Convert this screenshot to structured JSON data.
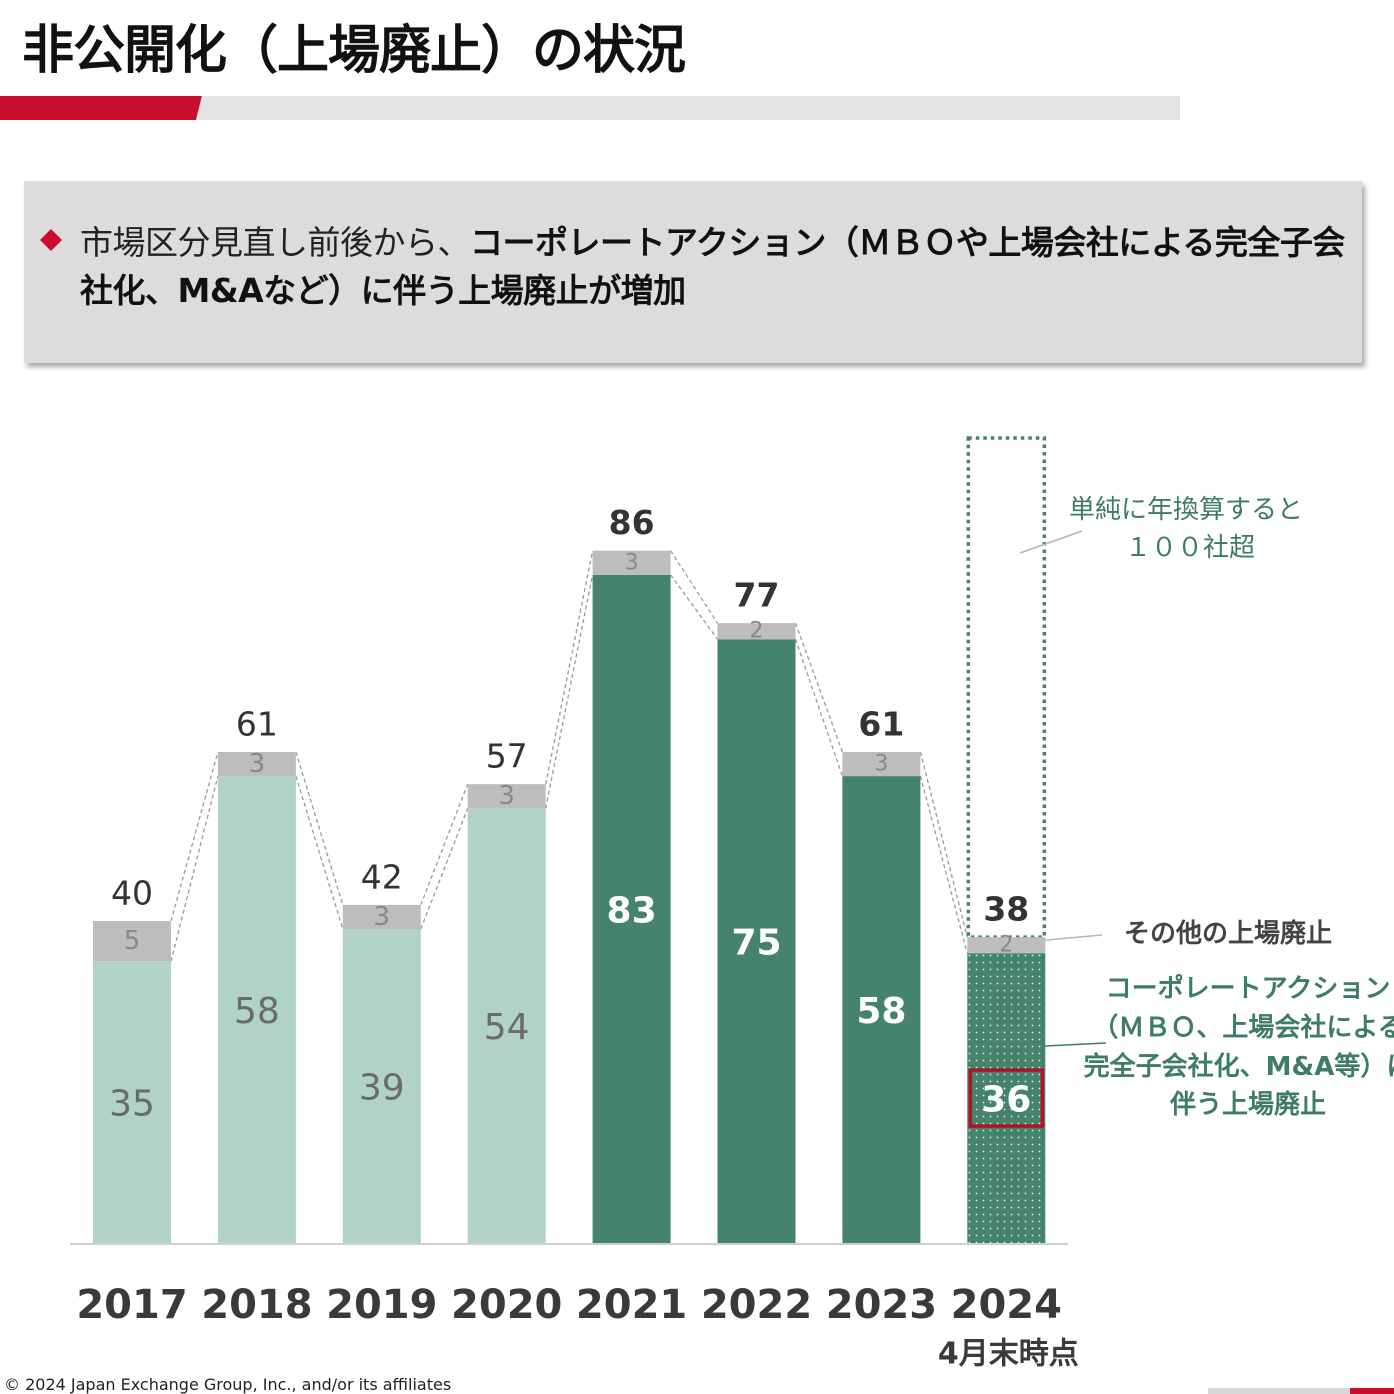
{
  "page": {
    "title": "非公開化（上場廃止）の状況",
    "footer": "© 2024 Japan Exchange Group, Inc., and/or its affiliates"
  },
  "summary": {
    "bullet_icon": "diamond-icon",
    "lead": "市場区分見直し前後から、",
    "emphasis": "コーポレートアクション（ＭＢＯや上場会社による完全子会社化、M&Aなど）に伴う上場廃止が増加"
  },
  "colors": {
    "accent_red": "#c8102e",
    "light_green": "#b0d3c6",
    "dark_green": "#46836c",
    "gray_segment": "#bdbdbd",
    "callout_text": "#3e7c64"
  },
  "chart_data": {
    "type": "bar",
    "stacked": true,
    "categories": [
      "2017",
      "2018",
      "2019",
      "2020",
      "2021",
      "2022",
      "2023",
      "2024"
    ],
    "category_sublabels": [
      "",
      "",
      "",
      "",
      "",
      "",
      "",
      "4月末時点"
    ],
    "series": [
      {
        "name": "コーポレートアクション（ＭＢＯ、上場会社による完全子会社化、M&A等）に伴う上場廃止",
        "values": [
          35,
          58,
          39,
          54,
          83,
          75,
          58,
          36
        ]
      },
      {
        "name": "その他の上場廃止",
        "values": [
          5,
          3,
          3,
          3,
          3,
          2,
          3,
          2
        ]
      }
    ],
    "totals": [
      40,
      61,
      42,
      57,
      86,
      77,
      61,
      38
    ],
    "annotation": "単純に年換算すると\n１００社超",
    "annualized_estimate_min": 100,
    "ylim": [
      0,
      100
    ],
    "grid": false,
    "legend": "right"
  }
}
